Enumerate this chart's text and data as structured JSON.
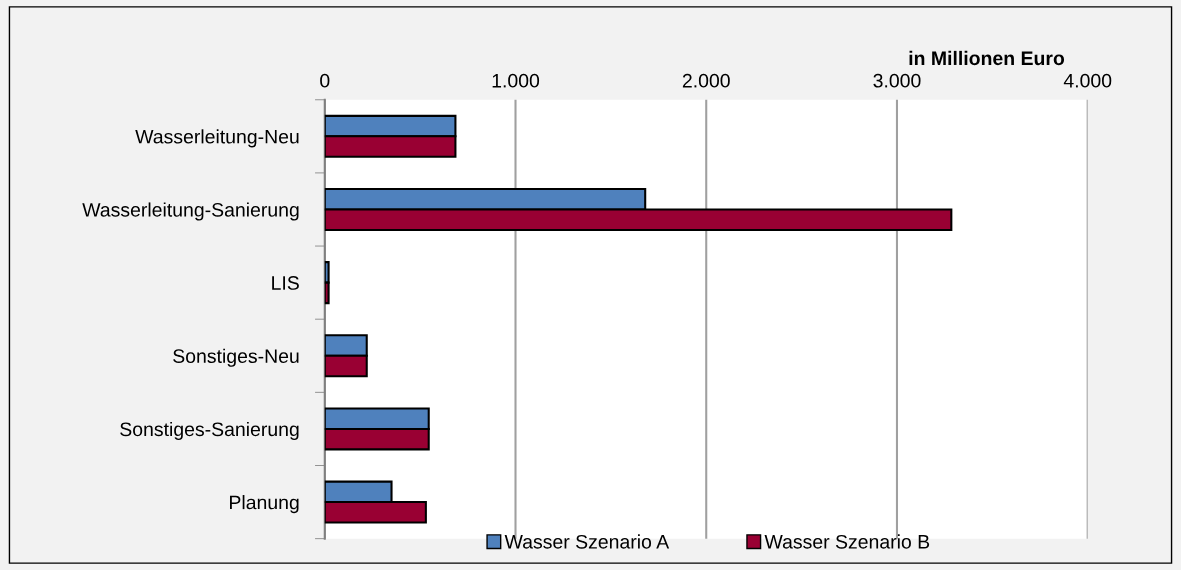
{
  "chart_data": {
    "type": "bar",
    "orientation": "horizontal",
    "xlabel": "in Millionen Euro",
    "categories": [
      "Wasserleitung-Neu",
      "Wasserleitung-Sanierung",
      "LIS",
      "Sonstiges-Neu",
      "Sonstiges-Sanierung",
      "Planung"
    ],
    "series": [
      {
        "name": "Wasser Szenario A",
        "color": "#4f81bd",
        "values": [
          685,
          1680,
          20,
          220,
          545,
          350
        ]
      },
      {
        "name": "Wasser Szenario B",
        "color": "#990033",
        "values": [
          685,
          3285,
          20,
          220,
          545,
          530
        ]
      }
    ],
    "xlim": [
      0,
      4000
    ],
    "xticks": [
      0,
      {
        "value": 1000,
        "label": "1.000"
      },
      {
        "value": 2000,
        "label": "2.000"
      },
      {
        "value": 3000,
        "label": "3.000"
      },
      {
        "value": 4000,
        "label": "4.000"
      }
    ],
    "grid": "x",
    "legend": "bottom"
  }
}
